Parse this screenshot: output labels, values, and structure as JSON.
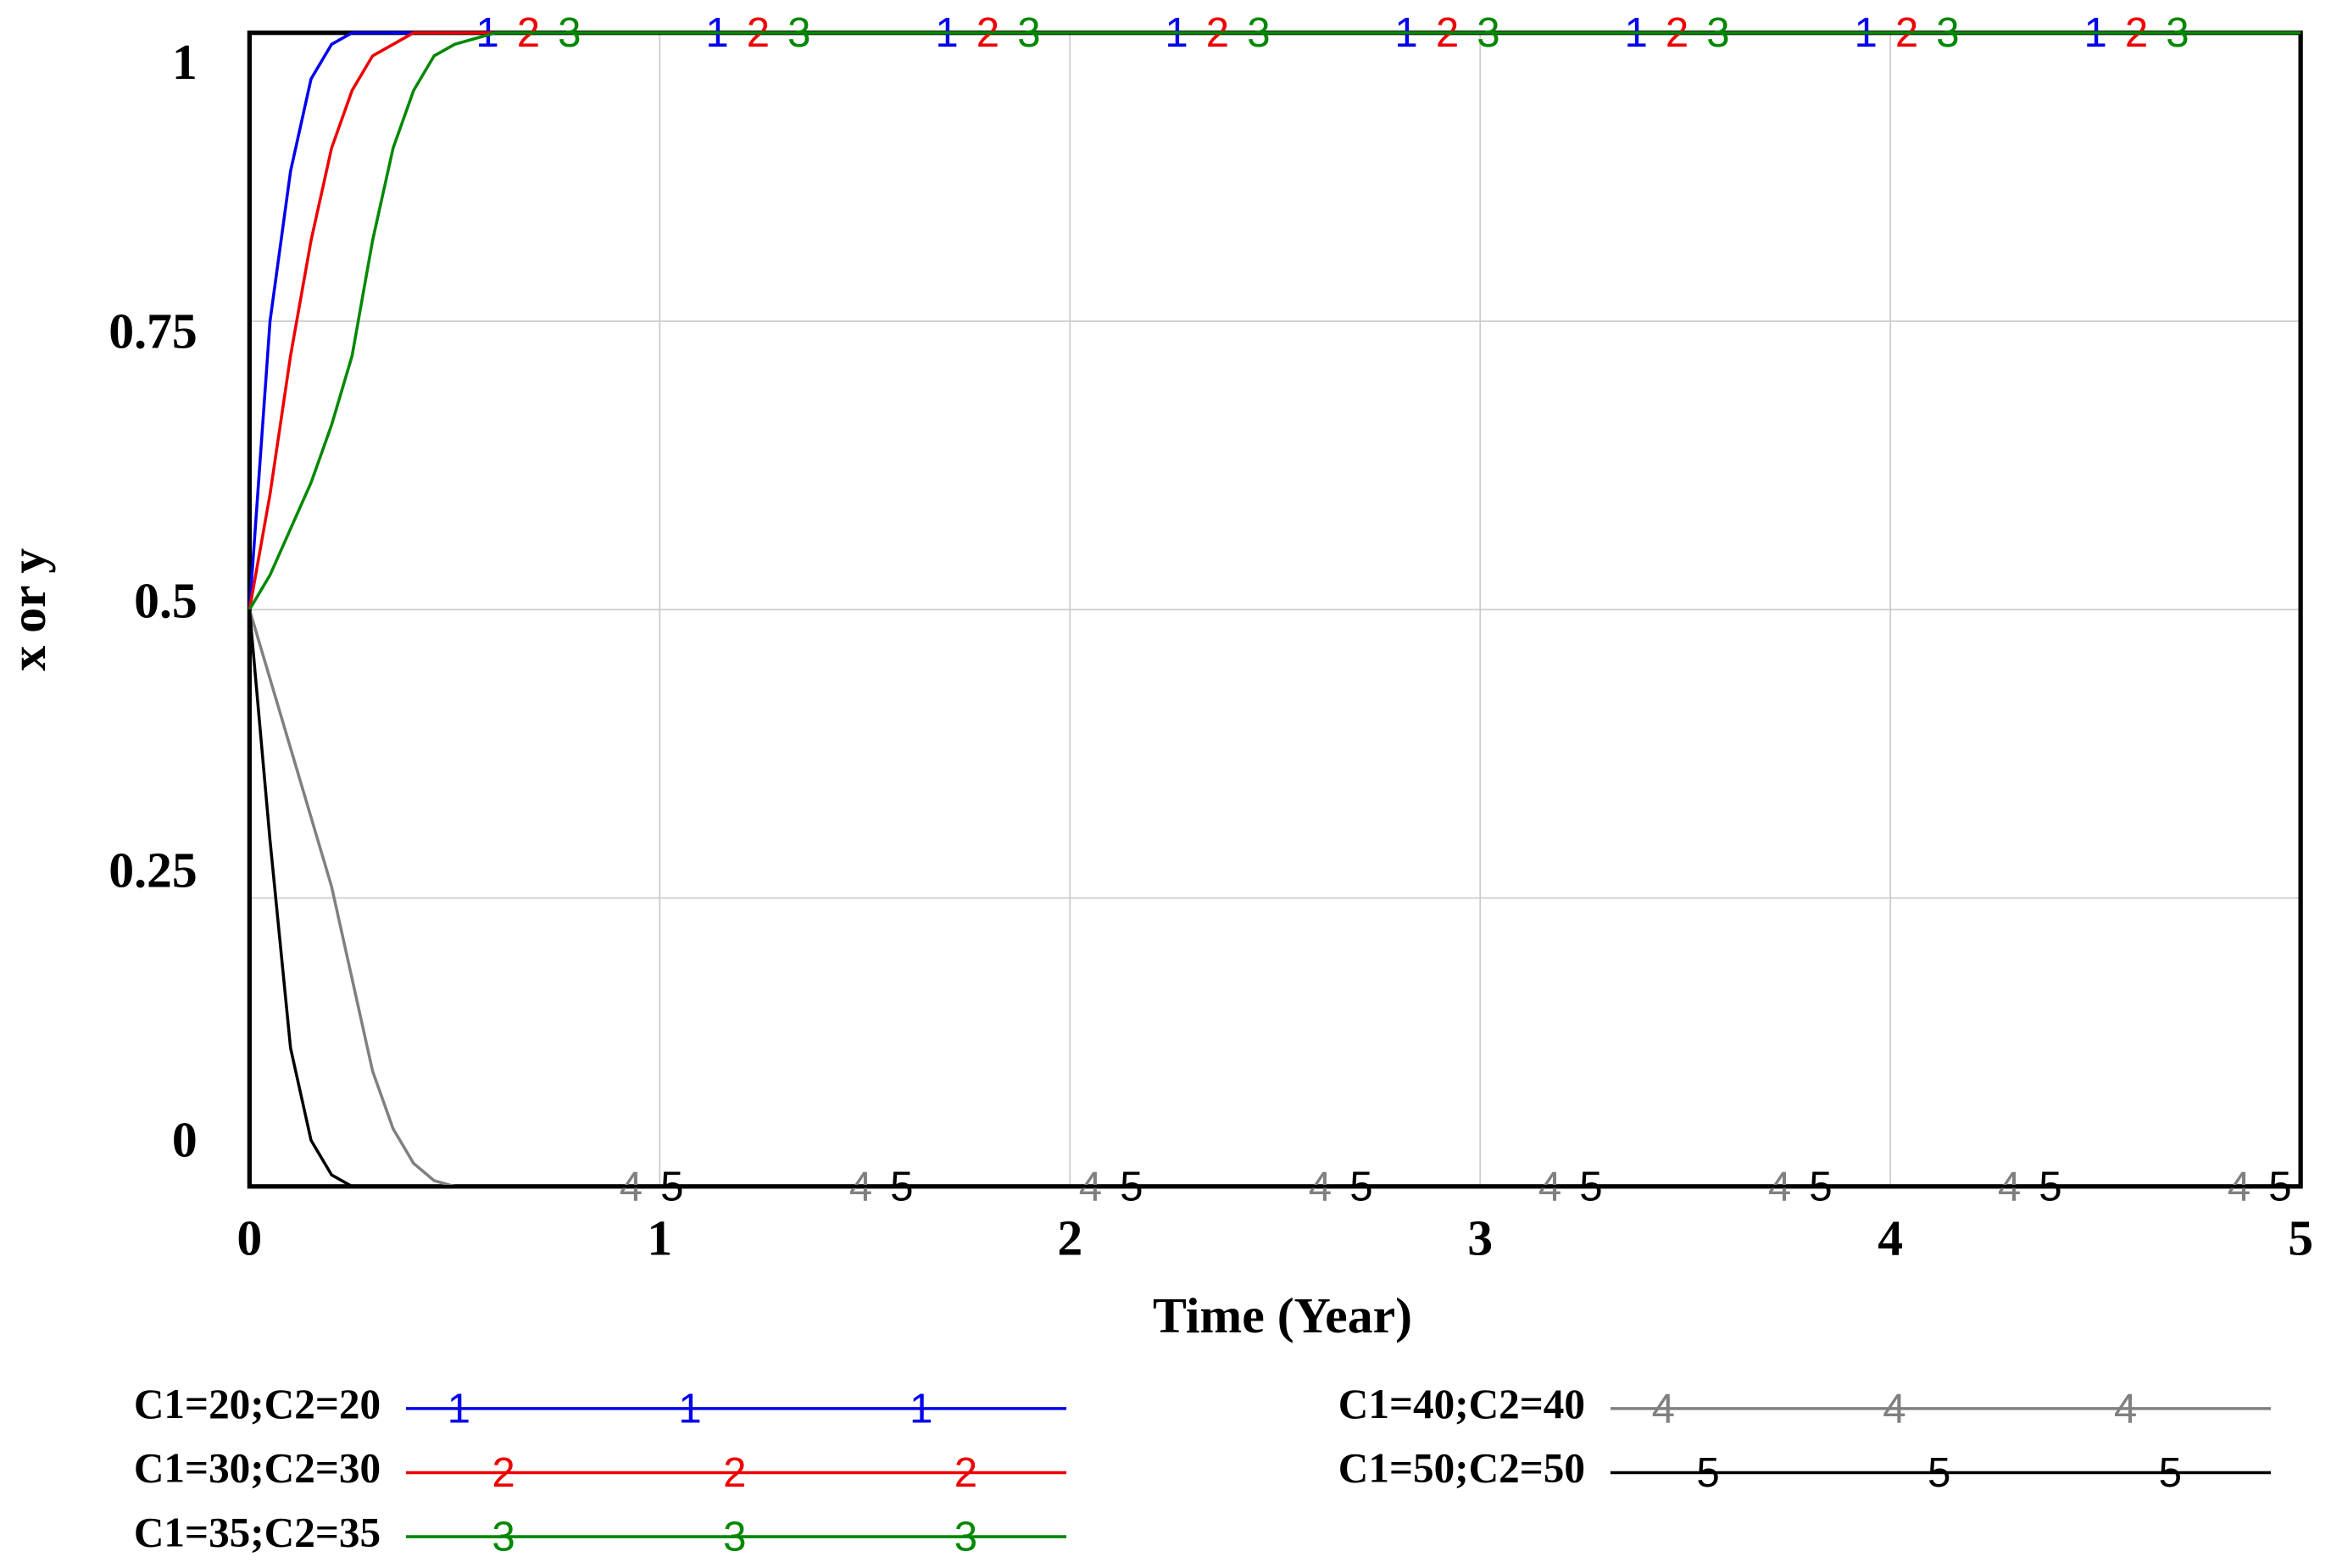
{
  "chart_data": {
    "type": "line",
    "x_label": "Time (Year)",
    "y_label": "x or y",
    "x": [
      0,
      0.05,
      0.1,
      0.15,
      0.2,
      0.25,
      0.3,
      0.35,
      0.4,
      0.45,
      0.5,
      0.6,
      1,
      2,
      3,
      4,
      5
    ],
    "xlim": [
      0,
      5
    ],
    "xticks": [
      0,
      1,
      2,
      3,
      4,
      5
    ],
    "ylim": [
      0,
      1
    ],
    "yticks": [
      0,
      0.25,
      0.5,
      0.75,
      1
    ],
    "grid": true,
    "series": [
      {
        "name": "C1=20;C2=20",
        "marker": "1",
        "color": "#0000ee",
        "values": [
          0.5,
          0.75,
          0.88,
          0.96,
          0.99,
          1,
          1,
          1,
          1,
          1,
          1,
          1,
          1,
          1,
          1,
          1,
          1
        ]
      },
      {
        "name": "C1=30;C2=30",
        "marker": "2",
        "color": "#ee0000",
        "values": [
          0.5,
          0.6,
          0.72,
          0.82,
          0.9,
          0.95,
          0.98,
          0.99,
          1,
          1,
          1,
          1,
          1,
          1,
          1,
          1,
          1
        ]
      },
      {
        "name": "C1=35;C2=35",
        "marker": "3",
        "color": "#008800",
        "values": [
          0.5,
          0.53,
          0.57,
          0.61,
          0.66,
          0.72,
          0.82,
          0.9,
          0.95,
          0.98,
          0.99,
          1,
          1,
          1,
          1,
          1,
          1
        ]
      },
      {
        "name": "C1=40;C2=40",
        "marker": "4",
        "color": "#808080",
        "values": [
          0.5,
          0.44,
          0.38,
          0.32,
          0.26,
          0.18,
          0.1,
          0.05,
          0.02,
          0.005,
          0,
          0,
          0,
          0,
          0,
          0,
          0
        ]
      },
      {
        "name": "C1=50;C2=50",
        "marker": "5",
        "color": "#000000",
        "values": [
          0.5,
          0.3,
          0.12,
          0.04,
          0.01,
          0,
          0,
          0,
          0,
          0,
          0,
          0,
          0,
          0,
          0,
          0,
          0
        ]
      }
    ]
  }
}
